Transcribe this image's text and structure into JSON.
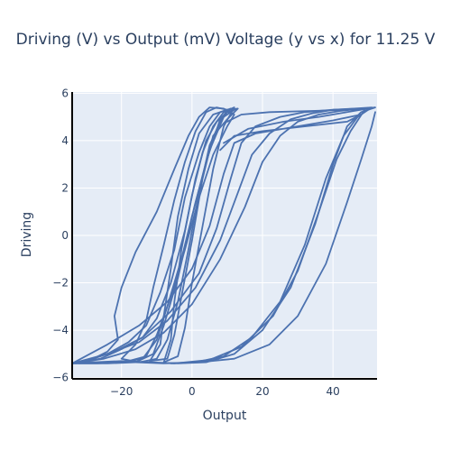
{
  "chart_data": {
    "type": "line",
    "title": "Driving (V) vs Output (mV) Voltage (y vs x) for 11.25 V",
    "xlabel": "Output",
    "ylabel": "Driving",
    "xlim": [
      -34,
      52.5
    ],
    "ylim": [
      -6.05,
      6.05
    ],
    "x_ticks": [
      -20,
      0,
      20,
      40
    ],
    "y_ticks": [
      -6,
      -4,
      -2,
      0,
      2,
      4,
      6
    ],
    "grid": true,
    "legend": "none",
    "colors": {
      "line": "#4c72b0",
      "plot_bg": "#e5ecf6",
      "grid": "#ffffff",
      "axis": "#000000"
    },
    "series": [
      {
        "values": [
          [
            -34.0,
            -5.4
          ],
          [
            -25.0,
            -5.2
          ],
          [
            -16.0,
            -4.8
          ],
          [
            -8.0,
            -4.1
          ],
          [
            0.0,
            -2.9
          ],
          [
            8.0,
            -1.0
          ],
          [
            15.0,
            1.2
          ],
          [
            20.0,
            3.1
          ],
          [
            25.0,
            4.2
          ],
          [
            30.0,
            4.8
          ],
          [
            36.0,
            5.1
          ],
          [
            42.0,
            5.25
          ],
          [
            48.0,
            5.35
          ],
          [
            52.0,
            5.4
          ],
          [
            48.0,
            5.2
          ],
          [
            44.0,
            4.6
          ],
          [
            40.0,
            3.0
          ],
          [
            35.0,
            0.5
          ],
          [
            28.0,
            -2.2
          ],
          [
            20.0,
            -4.0
          ],
          [
            12.0,
            -5.0
          ],
          [
            4.0,
            -5.35
          ],
          [
            -4.0,
            -5.4
          ],
          [
            -12.0,
            -5.35
          ],
          [
            -20.0,
            -5.3
          ],
          [
            -28.0,
            -5.35
          ],
          [
            -34.0,
            -5.4
          ]
        ]
      },
      {
        "values": [
          [
            -34.0,
            -5.4
          ],
          [
            -24.0,
            -5.0
          ],
          [
            -15.0,
            -4.5
          ],
          [
            -7.0,
            -3.6
          ],
          [
            1.0,
            -2.2
          ],
          [
            8.0,
            -0.2
          ],
          [
            13.0,
            1.8
          ],
          [
            17.0,
            3.4
          ],
          [
            22.0,
            4.3
          ],
          [
            28.0,
            4.9
          ],
          [
            34.0,
            5.15
          ],
          [
            40.0,
            5.3
          ],
          [
            46.0,
            5.35
          ],
          [
            51.0,
            5.4
          ],
          [
            47.0,
            5.0
          ],
          [
            43.0,
            4.2
          ],
          [
            38.0,
            2.4
          ],
          [
            32.0,
            -0.4
          ],
          [
            25.0,
            -2.8
          ],
          [
            17.0,
            -4.3
          ],
          [
            9.0,
            -5.1
          ],
          [
            1.0,
            -5.35
          ],
          [
            -8.0,
            -5.4
          ],
          [
            -16.0,
            -5.35
          ],
          [
            -25.0,
            -5.35
          ],
          [
            -34.0,
            -5.4
          ]
        ]
      },
      {
        "values": [
          [
            -33.0,
            -5.4
          ],
          [
            -22.0,
            -4.9
          ],
          [
            -14.0,
            -4.3
          ],
          [
            -6.0,
            -3.2
          ],
          [
            2.0,
            -1.6
          ],
          [
            7.0,
            0.3
          ],
          [
            11.0,
            2.4
          ],
          [
            14.0,
            3.9
          ],
          [
            18.0,
            4.6
          ],
          [
            25.0,
            5.0
          ],
          [
            32.0,
            5.2
          ],
          [
            40.0,
            5.3
          ],
          [
            47.0,
            5.35
          ],
          [
            49.0,
            5.3
          ],
          [
            45.0,
            4.4
          ],
          [
            41.0,
            3.2
          ],
          [
            36.0,
            1.0
          ],
          [
            30.0,
            -1.5
          ],
          [
            23.0,
            -3.4
          ],
          [
            14.0,
            -4.7
          ],
          [
            5.0,
            -5.25
          ],
          [
            -5.0,
            -5.4
          ],
          [
            -14.0,
            -5.35
          ],
          [
            -24.0,
            -5.35
          ],
          [
            -33.0,
            -5.4
          ]
        ]
      },
      {
        "values": [
          [
            -34.0,
            -5.4
          ],
          [
            -26.0,
            -5.2
          ],
          [
            -20.0,
            -4.8
          ],
          [
            -14.0,
            -4.3
          ],
          [
            -10.0,
            -3.5
          ],
          [
            -6.0,
            -2.0
          ],
          [
            -2.0,
            0.2
          ],
          [
            1.0,
            2.4
          ],
          [
            4.0,
            4.0
          ],
          [
            7.0,
            4.8
          ],
          [
            10.0,
            5.2
          ],
          [
            12.0,
            5.3
          ],
          [
            9.0,
            5.0
          ],
          [
            5.0,
            3.6
          ],
          [
            1.0,
            1.4
          ],
          [
            -3.0,
            -1.0
          ],
          [
            -7.0,
            -3.0
          ],
          [
            -10.0,
            -4.4
          ],
          [
            -14.0,
            -5.2
          ],
          [
            -20.0,
            -5.35
          ],
          [
            -27.0,
            -5.4
          ],
          [
            -34.0,
            -5.4
          ]
        ]
      },
      {
        "values": [
          [
            -32.0,
            -5.4
          ],
          [
            -24.0,
            -5.0
          ],
          [
            -18.0,
            -4.5
          ],
          [
            -13.0,
            -3.8
          ],
          [
            -9.0,
            -2.4
          ],
          [
            -5.0,
            -0.6
          ],
          [
            -2.0,
            1.6
          ],
          [
            2.0,
            3.5
          ],
          [
            5.0,
            4.6
          ],
          [
            8.0,
            5.2
          ],
          [
            11.0,
            5.35
          ],
          [
            8.0,
            4.9
          ],
          [
            4.0,
            3.1
          ],
          [
            0.0,
            0.8
          ],
          [
            -4.0,
            -1.8
          ],
          [
            -8.0,
            -3.8
          ],
          [
            -11.0,
            -5.0
          ],
          [
            -16.0,
            -5.35
          ],
          [
            -24.0,
            -5.4
          ],
          [
            -32.0,
            -5.4
          ]
        ]
      },
      {
        "values": [
          [
            -30.0,
            -5.35
          ],
          [
            -24.0,
            -4.9
          ],
          [
            -21.0,
            -4.4
          ],
          [
            -22.0,
            -3.4
          ],
          [
            -20.0,
            -2.2
          ],
          [
            -16.0,
            -0.7
          ],
          [
            -10.0,
            1.0
          ],
          [
            -5.0,
            2.8
          ],
          [
            -1.0,
            4.2
          ],
          [
            2.0,
            5.0
          ],
          [
            5.0,
            5.4
          ],
          [
            9.0,
            5.35
          ],
          [
            12.0,
            5.1
          ],
          [
            10.0,
            4.6
          ],
          [
            6.0,
            3.4
          ],
          [
            2.0,
            1.6
          ],
          [
            -2.0,
            -0.6
          ],
          [
            -6.0,
            -2.6
          ],
          [
            -10.0,
            -4.2
          ],
          [
            -13.0,
            -5.1
          ],
          [
            -18.0,
            -5.3
          ],
          [
            -24.0,
            -5.35
          ],
          [
            -30.0,
            -5.35
          ]
        ]
      },
      {
        "values": [
          [
            -20.0,
            -5.2
          ],
          [
            -16.0,
            -4.6
          ],
          [
            -13.0,
            -3.6
          ],
          [
            -11.0,
            -2.2
          ],
          [
            -8.0,
            -0.4
          ],
          [
            -5.0,
            1.5
          ],
          [
            -2.0,
            3.1
          ],
          [
            1.0,
            4.4
          ],
          [
            4.0,
            5.2
          ],
          [
            7.0,
            5.4
          ],
          [
            10.0,
            5.3
          ],
          [
            8.0,
            4.8
          ],
          [
            5.0,
            3.8
          ],
          [
            2.0,
            1.8
          ],
          [
            -1.0,
            -0.6
          ],
          [
            -4.0,
            -2.8
          ],
          [
            -7.0,
            -4.4
          ],
          [
            -10.0,
            -5.2
          ],
          [
            -15.0,
            -5.35
          ],
          [
            -20.0,
            -5.2
          ]
        ]
      },
      {
        "values": [
          [
            -12.0,
            -5.3
          ],
          [
            -9.0,
            -4.6
          ],
          [
            -8.0,
            -3.4
          ],
          [
            -6.0,
            -1.4
          ],
          [
            -4.0,
            0.8
          ],
          [
            -1.0,
            2.8
          ],
          [
            2.0,
            4.3
          ],
          [
            6.0,
            5.1
          ],
          [
            10.0,
            5.3
          ],
          [
            13.0,
            5.35
          ],
          [
            10.0,
            4.9
          ],
          [
            6.0,
            4.2
          ],
          [
            3.0,
            2.4
          ],
          [
            0.0,
            -0.2
          ],
          [
            -3.0,
            -2.6
          ],
          [
            -5.0,
            -4.2
          ],
          [
            -7.0,
            -5.2
          ],
          [
            -12.0,
            -5.3
          ]
        ]
      },
      {
        "values": [
          [
            -8.0,
            -5.35
          ],
          [
            -6.0,
            -4.4
          ],
          [
            -5.0,
            -2.8
          ],
          [
            -3.0,
            -0.6
          ],
          [
            0.0,
            1.7
          ],
          [
            3.0,
            3.5
          ],
          [
            6.0,
            4.6
          ],
          [
            9.0,
            5.2
          ],
          [
            12.0,
            5.4
          ],
          [
            9.0,
            4.6
          ],
          [
            6.0,
            2.8
          ],
          [
            3.0,
            0.4
          ],
          [
            0.0,
            -2.0
          ],
          [
            -2.0,
            -3.9
          ],
          [
            -4.0,
            -5.1
          ],
          [
            -8.0,
            -5.35
          ]
        ]
      },
      {
        "values": [
          [
            -34.0,
            -5.4
          ],
          [
            -24.0,
            -4.6
          ],
          [
            -15.0,
            -3.8
          ],
          [
            -7.0,
            -2.8
          ],
          [
            0.0,
            -1.4
          ],
          [
            5.0,
            0.4
          ],
          [
            9.0,
            2.6
          ],
          [
            12.0,
            3.9
          ],
          [
            18.0,
            4.3
          ],
          [
            28.0,
            4.55
          ],
          [
            40.0,
            4.85
          ],
          [
            48.0,
            5.1
          ],
          [
            44.0,
            4.8
          ],
          [
            32.0,
            4.6
          ],
          [
            20.0,
            4.4
          ],
          [
            12.0,
            4.2
          ],
          [
            8.0,
            3.6
          ]
        ]
      },
      {
        "values": [
          [
            9.0,
            3.9
          ],
          [
            16.0,
            4.5
          ],
          [
            26.0,
            4.8
          ],
          [
            36.0,
            5.0
          ],
          [
            44.0,
            5.2
          ],
          [
            50.0,
            5.35
          ],
          [
            44.0,
            5.3
          ],
          [
            34.0,
            5.25
          ],
          [
            22.0,
            5.2
          ],
          [
            14.0,
            5.1
          ],
          [
            10.0,
            4.8
          ]
        ]
      },
      {
        "values": [
          [
            -6.0,
            -5.4
          ],
          [
            2.0,
            -5.35
          ],
          [
            12.0,
            -5.2
          ],
          [
            22.0,
            -4.6
          ],
          [
            30.0,
            -3.4
          ],
          [
            38.0,
            -1.2
          ],
          [
            44.0,
            1.4
          ],
          [
            48.0,
            3.2
          ],
          [
            51.0,
            4.6
          ],
          [
            52.0,
            5.2
          ]
        ]
      }
    ]
  }
}
